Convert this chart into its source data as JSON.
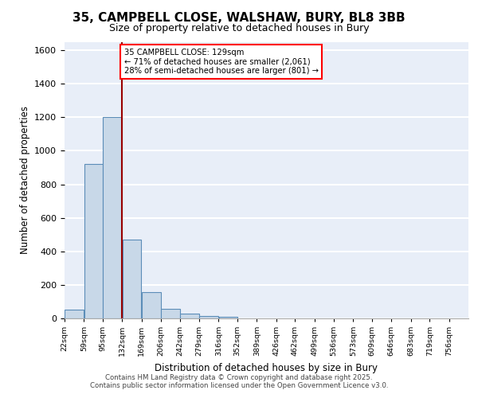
{
  "title_line1": "35, CAMPBELL CLOSE, WALSHAW, BURY, BL8 3BB",
  "title_line2": "Size of property relative to detached houses in Bury",
  "xlabel": "Distribution of detached houses by size in Bury",
  "ylabel": "Number of detached properties",
  "bin_labels": [
    "22sqm",
    "59sqm",
    "95sqm",
    "132sqm",
    "169sqm",
    "206sqm",
    "242sqm",
    "279sqm",
    "316sqm",
    "352sqm",
    "389sqm",
    "426sqm",
    "462sqm",
    "499sqm",
    "536sqm",
    "573sqm",
    "609sqm",
    "646sqm",
    "683sqm",
    "719sqm",
    "756sqm"
  ],
  "bin_lefts": [
    22,
    59,
    95,
    132,
    169,
    206,
    242,
    279,
    316,
    352,
    389,
    426,
    462,
    499,
    536,
    573,
    609,
    646,
    683,
    719,
    756
  ],
  "bar_values": [
    50,
    920,
    1200,
    470,
    155,
    55,
    30,
    15,
    10,
    0,
    0,
    0,
    0,
    0,
    0,
    0,
    0,
    0,
    0,
    0,
    0
  ],
  "bar_color": "#c8d8e8",
  "bar_edge_color": "#5b8db8",
  "red_line_x": 132,
  "annotation_text": "35 CAMPBELL CLOSE: 129sqm\n← 71% of detached houses are smaller (2,061)\n28% of semi-detached houses are larger (801) →",
  "ylim": [
    0,
    1650
  ],
  "yticks": [
    0,
    200,
    400,
    600,
    800,
    1000,
    1200,
    1400,
    1600
  ],
  "background_color": "#e8eef8",
  "grid_color": "white",
  "footer_line1": "Contains HM Land Registry data © Crown copyright and database right 2025.",
  "footer_line2": "Contains public sector information licensed under the Open Government Licence v3.0."
}
